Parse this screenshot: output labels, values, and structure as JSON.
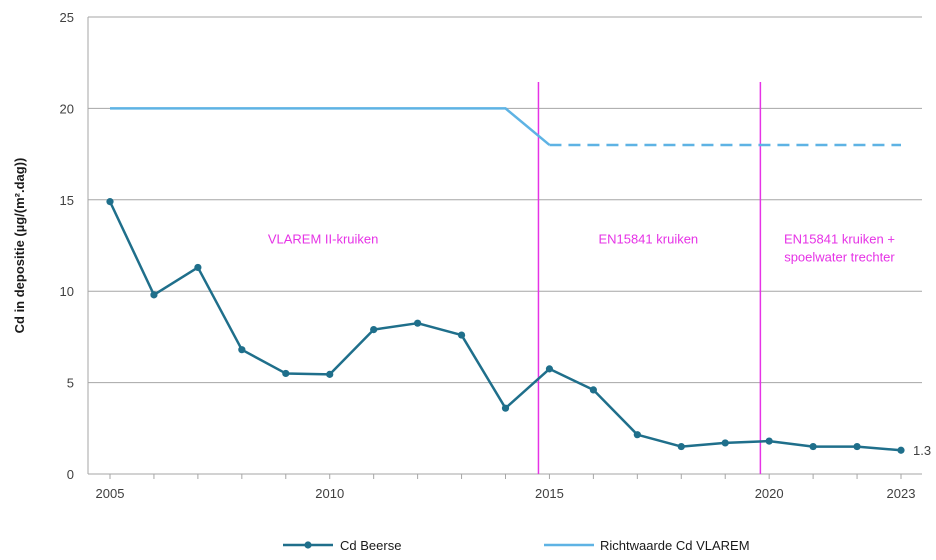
{
  "chart_data": {
    "type": "line",
    "ylabel": "Cd in depositie (µg/(m².dag))",
    "xlabel": "",
    "ylim": [
      0,
      25
    ],
    "xlim": [
      2005,
      2023
    ],
    "y_ticks": [
      0,
      5,
      10,
      15,
      20,
      25
    ],
    "x_tick_labels": [
      "2005",
      "2010",
      "2015",
      "2020",
      "2023"
    ],
    "grid": "horizontal",
    "legend_position": "bottom",
    "series": [
      {
        "name": "Cd Beerse",
        "color": "#1f6f8b",
        "marker": "circle",
        "x": [
          2005,
          2006,
          2007,
          2008,
          2009,
          2010,
          2011,
          2012,
          2013,
          2014,
          2015,
          2016,
          2017,
          2018,
          2019,
          2020,
          2021,
          2022,
          2023
        ],
        "values": [
          14.9,
          9.8,
          11.3,
          6.8,
          5.5,
          5.45,
          7.9,
          8.25,
          7.6,
          3.6,
          5.75,
          4.6,
          2.15,
          1.5,
          1.7,
          1.8,
          1.5,
          1.5,
          1.3
        ]
      },
      {
        "name": "Richtwaarde Cd VLAREM",
        "color": "#5eb3e4",
        "solid": {
          "x": [
            2005,
            2014,
            2015
          ],
          "values": [
            20,
            20,
            18
          ]
        },
        "dashed": {
          "x": [
            2015,
            2023
          ],
          "values": [
            18,
            18
          ]
        }
      }
    ],
    "end_label": "1.3",
    "vertical_markers": [
      {
        "x": 2014.75,
        "color": "#e633e6"
      },
      {
        "x": 2019.8,
        "color": "#e633e6"
      }
    ],
    "annotations": [
      {
        "text": "VLAREM II-kruiken",
        "x": 2009.85,
        "y": 12.5,
        "lines": [
          "VLAREM II-kruiken"
        ]
      },
      {
        "text": "EN15841 kruiken",
        "x": 2017.25,
        "y": 12.5,
        "lines": [
          "EN15841 kruiken"
        ]
      },
      {
        "text": "EN15841 kruiken + spoelwater trechter",
        "x": 2021.6,
        "y": 12.5,
        "lines": [
          "EN15841 kruiken +",
          "spoelwater trechter"
        ]
      }
    ],
    "annotation_color": "#e633e6"
  }
}
